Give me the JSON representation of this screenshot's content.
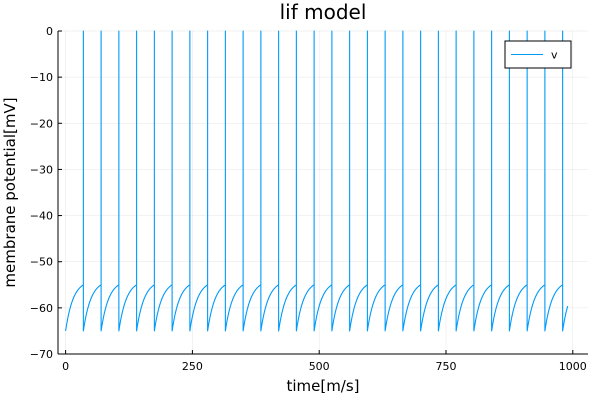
{
  "chart_data": {
    "type": "line",
    "title": "lif model",
    "xlabel": "time[m/s]",
    "ylabel": "membrane potential[mV]",
    "xlim": [
      -15,
      1030
    ],
    "ylim": [
      -70,
      0
    ],
    "x_ticks": [
      0,
      250,
      500,
      750,
      1000
    ],
    "y_ticks": [
      0,
      -10,
      -20,
      -30,
      -40,
      -50,
      -60,
      -70
    ],
    "x_tick_labels": [
      "0",
      "250",
      "500",
      "750",
      "1000"
    ],
    "y_tick_labels": [
      "0",
      "−10",
      "−20",
      "−30",
      "−40",
      "−50",
      "−60",
      "−70"
    ],
    "grid": true,
    "legend_position": "top-right",
    "series": [
      {
        "name": "v",
        "color": "#009AFA",
        "model": "leaky integrate-and-fire",
        "t_start": 0,
        "t_end": 990,
        "resting_potential": -65,
        "threshold": -55,
        "spike_peak": 0,
        "spike_period": 35,
        "charge_time_constant": 15,
        "spike_times": [
          35,
          70,
          105,
          140,
          175,
          210,
          245,
          280,
          315,
          350,
          385,
          420,
          455,
          490,
          525,
          560,
          595,
          630,
          665,
          700,
          735,
          770,
          805,
          840,
          875,
          910,
          945,
          980
        ],
        "final_value": -57.5
      }
    ]
  }
}
